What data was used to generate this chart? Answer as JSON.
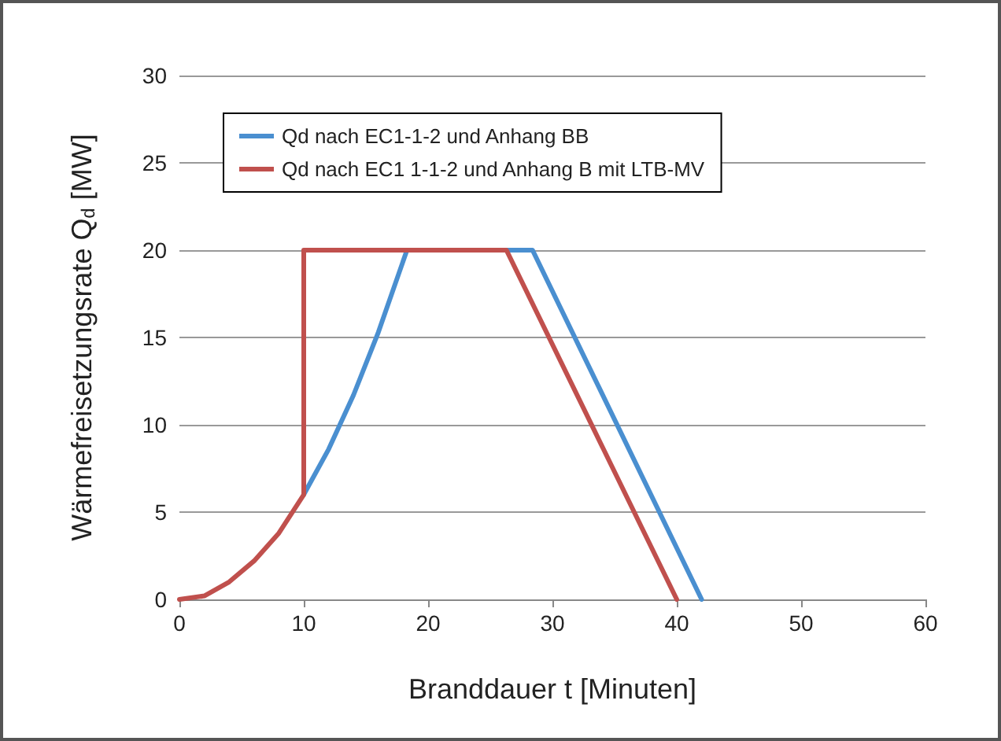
{
  "chart_data": {
    "type": "line",
    "xlabel": "Branddauer t [Minuten]",
    "ylabel": "Wärmefreisetzungsrate Q$_{d}$ [MW]",
    "series": [
      {
        "name": "Qd nach EC1-1-2 und Anhang BB",
        "color": "#4a8fd0",
        "x": [
          10,
          12,
          14,
          16,
          18.3,
          28.4,
          42
        ],
        "values": [
          6,
          8.6,
          11.7,
          15.3,
          20,
          20,
          0
        ]
      },
      {
        "name": "Qd nach EC1 1-1-2 und Anhang B mit LTB-MV",
        "color": "#c0504d",
        "x": [
          0,
          2,
          4,
          6,
          8,
          10,
          10,
          26.3,
          40
        ],
        "values": [
          0,
          0.2,
          1,
          2.2,
          3.8,
          6,
          20,
          20,
          0
        ]
      }
    ],
    "xlim": [
      0,
      60
    ],
    "xticks": [
      0,
      10,
      20,
      30,
      40,
      50,
      60
    ],
    "ylim": [
      0,
      30
    ],
    "yticks": [
      0,
      5,
      10,
      15,
      20,
      25,
      30
    ],
    "grid": "y",
    "legend": "top left",
    "marker": "none",
    "line_style": "solid"
  }
}
